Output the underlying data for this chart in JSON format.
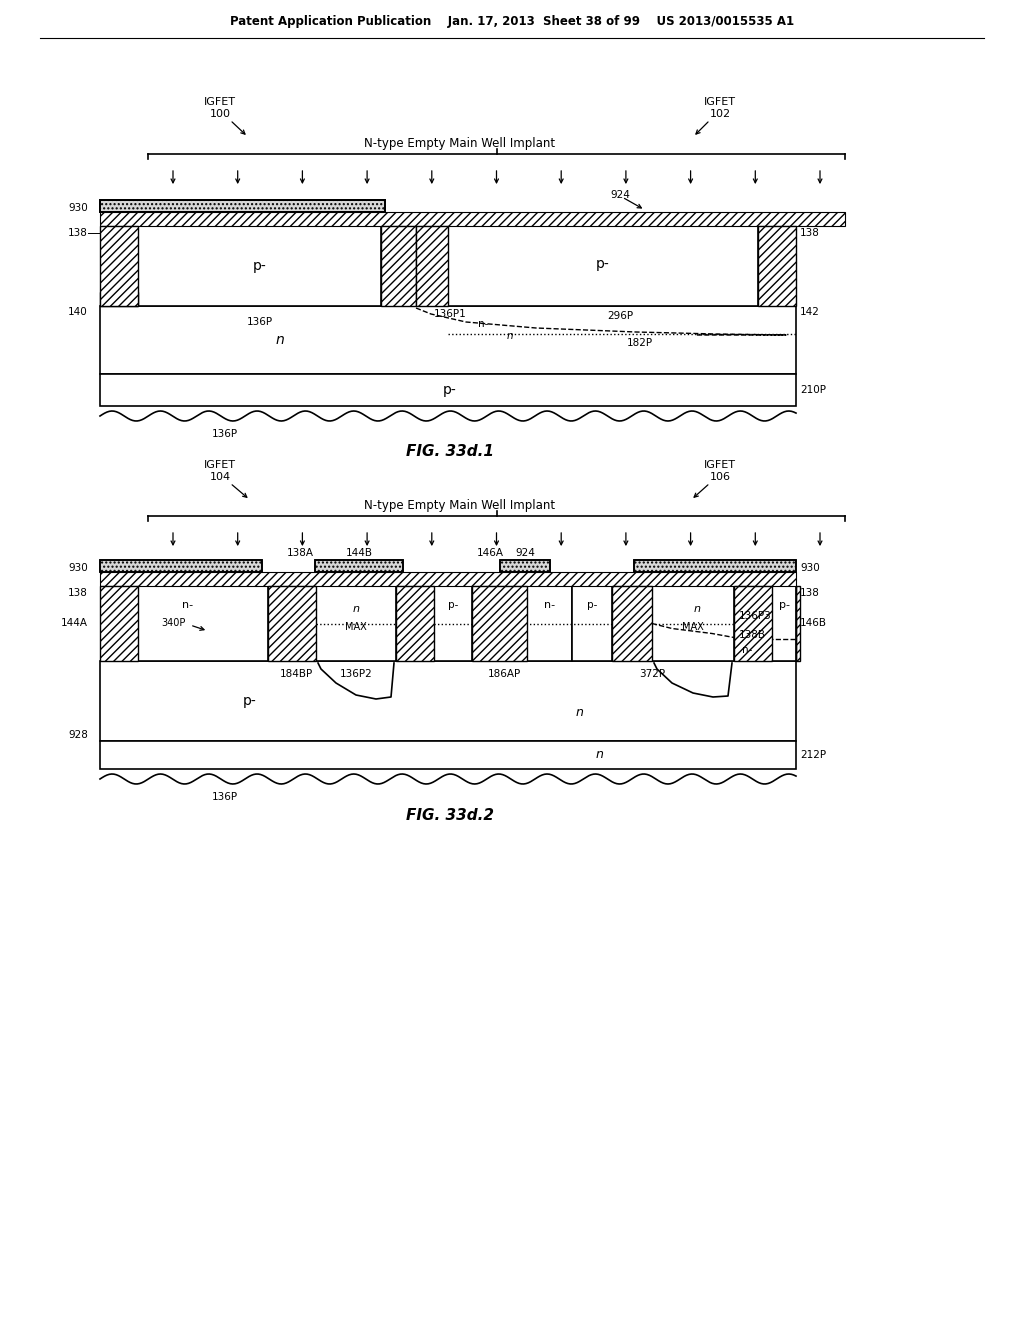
{
  "header": "Patent Application Publication    Jan. 17, 2013  Sheet 38 of 99    US 2013/0015535 A1",
  "fig1_label": "FIG. 33d.1",
  "fig2_label": "FIG. 33d.2",
  "bg_color": "#ffffff"
}
